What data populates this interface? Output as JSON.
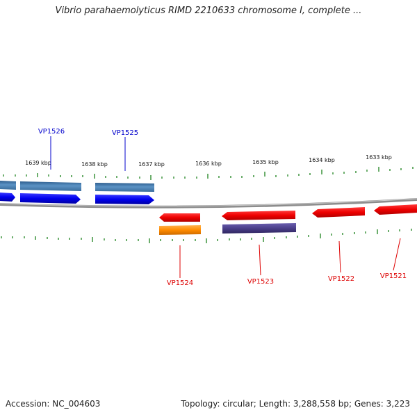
{
  "title": "Vibrio parahaemolyticus RIMD 2210633 chromosome I, complete ...",
  "footer": {
    "accession": "Accession: NC_004603",
    "stats": "Topology: circular; Length: 3,288,558 bp; Genes: 3,223"
  },
  "ruler_labels": [
    "1639 kbp",
    "1638 kbp",
    "1637 kbp",
    "1636 kbp",
    "1635 kbp",
    "1634 kbp",
    "1633 kbp"
  ],
  "genes": [
    {
      "id": "VP1526",
      "color": "#0000cc"
    },
    {
      "id": "VP1525",
      "color": "#0000cc"
    },
    {
      "id": "VP1524",
      "color": "#dd0000"
    },
    {
      "id": "VP1523",
      "color": "#dd0000"
    },
    {
      "id": "VP1522",
      "color": "#dd0000"
    },
    {
      "id": "VP1521",
      "color": "#dd0000"
    }
  ],
  "colors": {
    "forward_cds": "#0000ee",
    "forward_gene": "#4f86b8",
    "reverse_cds": "#ee0000",
    "reverse_gene_orange": "#ff8c00",
    "reverse_gene_purple": "#4b3f8a",
    "backbone": "#8c8c8c",
    "tick": "#2e8b2e"
  }
}
